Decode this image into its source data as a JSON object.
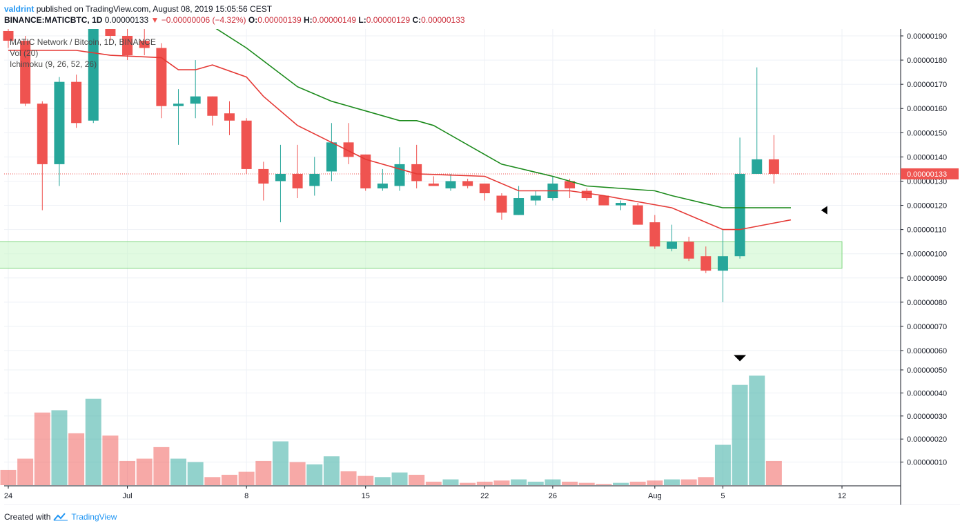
{
  "header": {
    "author": "valdrint",
    "published_text": "published on TradingView.com, August 08, 2019 15:05:56 CEST",
    "symbol": "BINANCE:MATICBTC, 1D",
    "last": "0.00000133",
    "change_arrow": "▼",
    "change": "−0.00000006 (−4.32%)",
    "o_label": "O:",
    "o_value": "0.00000139",
    "h_label": "H:",
    "h_value": "0.00000149",
    "l_label": "L:",
    "l_value": "0.00000129",
    "c_label": "C:",
    "c_value": "0.00000133"
  },
  "legend": {
    "title": "MATIC Network / Bitcoin, 1D, BINANCE",
    "volume": "Vol (20)",
    "ichimoku": "Ichimoku (9, 26, 52, 26)"
  },
  "footer": {
    "created_with": "Created with",
    "brand": "TradingView",
    "logo_icon": "tradingview-logo-icon"
  },
  "colors": {
    "up": "#26a69a",
    "down": "#ef5350",
    "vol_up": "#26a69a",
    "vol_down": "#ef5350",
    "conversion_line": "#e53935",
    "base_line": "#1b8a1b",
    "zone_fill": "#c8f5c8",
    "zone_stroke": "#7ed67e",
    "price_tag": "#ef5350",
    "grid": "#eef1f6"
  },
  "chart_data": {
    "type": "candlestick",
    "title": "MATIC Network / Bitcoin, 1D, BINANCE",
    "price_axis_range": [
      6.2e-07,
      1.9e-06
    ],
    "price_ticks": [
      "0.00000060",
      "0.00000070",
      "0.00000080",
      "0.00000090",
      "0.00000100",
      "0.00000110",
      "0.00000120",
      "0.00000130",
      "0.00000140",
      "0.00000150",
      "0.00000160",
      "0.00000170",
      "0.00000180",
      "0.00000190"
    ],
    "volume_ticks": [
      "0.00000010",
      "0.00000020",
      "0.00000030",
      "0.00000040",
      "0.00000050"
    ],
    "volume_axis_range": [
      0,
      5e-07
    ],
    "x_ticks": [
      {
        "label": "24",
        "day": "2019-06-24"
      },
      {
        "label": "Jul",
        "day": "2019-07-01"
      },
      {
        "label": "8",
        "day": "2019-07-08"
      },
      {
        "label": "15",
        "day": "2019-07-15"
      },
      {
        "label": "22",
        "day": "2019-07-22"
      },
      {
        "label": "26",
        "day": "2019-07-26"
      },
      {
        "label": "Aug",
        "day": "2019-08-01"
      },
      {
        "label": "5",
        "day": "2019-08-05"
      },
      {
        "label": "12",
        "day": "2019-08-12"
      }
    ],
    "x_range": [
      "2019-06-24",
      "2019-08-15"
    ],
    "candles": [
      {
        "date": "2019-06-24",
        "o": 1.92,
        "h": 1.95,
        "l": 1.85,
        "c": 1.88,
        "v": 0.066
      },
      {
        "date": "2019-06-25",
        "o": 1.88,
        "h": 1.9,
        "l": 1.61,
        "c": 1.62,
        "v": 0.115
      },
      {
        "date": "2019-06-26",
        "o": 1.62,
        "h": 1.63,
        "l": 1.18,
        "c": 1.37,
        "v": 0.315
      },
      {
        "date": "2019-06-27",
        "o": 1.37,
        "h": 1.73,
        "l": 1.28,
        "c": 1.71,
        "v": 0.325
      },
      {
        "date": "2019-06-28",
        "o": 1.71,
        "h": 1.74,
        "l": 1.52,
        "c": 1.54,
        "v": 0.225
      },
      {
        "date": "2019-06-29",
        "o": 1.55,
        "h": 1.98,
        "l": 1.54,
        "c": 1.96,
        "v": 0.375
      },
      {
        "date": "2019-06-30",
        "o": 1.96,
        "h": 2.03,
        "l": 1.88,
        "c": 1.9,
        "v": 0.215
      },
      {
        "date": "2019-07-01",
        "o": 1.9,
        "h": 1.93,
        "l": 1.8,
        "c": 1.82,
        "v": 0.105
      },
      {
        "date": "2019-07-02",
        "o": 1.88,
        "h": 1.95,
        "l": 1.82,
        "c": 1.85,
        "v": 0.115
      },
      {
        "date": "2019-07-03",
        "o": 1.85,
        "h": 1.87,
        "l": 1.56,
        "c": 1.61,
        "v": 0.165
      },
      {
        "date": "2019-07-04",
        "o": 1.61,
        "h": 1.68,
        "l": 1.45,
        "c": 1.62,
        "v": 0.115
      },
      {
        "date": "2019-07-05",
        "o": 1.62,
        "h": 1.8,
        "l": 1.56,
        "c": 1.65,
        "v": 0.1
      },
      {
        "date": "2019-07-06",
        "o": 1.65,
        "h": 1.65,
        "l": 1.53,
        "c": 1.57,
        "v": 0.035
      },
      {
        "date": "2019-07-07",
        "o": 1.58,
        "h": 1.63,
        "l": 1.49,
        "c": 1.55,
        "v": 0.045
      },
      {
        "date": "2019-07-08",
        "o": 1.55,
        "h": 1.56,
        "l": 1.33,
        "c": 1.35,
        "v": 0.058
      },
      {
        "date": "2019-07-09",
        "o": 1.35,
        "h": 1.38,
        "l": 1.22,
        "c": 1.29,
        "v": 0.105
      },
      {
        "date": "2019-07-10",
        "o": 1.3,
        "h": 1.45,
        "l": 1.13,
        "c": 1.33,
        "v": 0.19
      },
      {
        "date": "2019-07-11",
        "o": 1.33,
        "h": 1.45,
        "l": 1.23,
        "c": 1.27,
        "v": 0.1
      },
      {
        "date": "2019-07-12",
        "o": 1.28,
        "h": 1.4,
        "l": 1.24,
        "c": 1.33,
        "v": 0.09
      },
      {
        "date": "2019-07-13",
        "o": 1.34,
        "h": 1.54,
        "l": 1.3,
        "c": 1.46,
        "v": 0.125
      },
      {
        "date": "2019-07-14",
        "o": 1.46,
        "h": 1.54,
        "l": 1.37,
        "c": 1.4,
        "v": 0.06
      },
      {
        "date": "2019-07-15",
        "o": 1.41,
        "h": 1.41,
        "l": 1.26,
        "c": 1.27,
        "v": 0.04
      },
      {
        "date": "2019-07-16",
        "o": 1.27,
        "h": 1.35,
        "l": 1.26,
        "c": 1.29,
        "v": 0.035
      },
      {
        "date": "2019-07-17",
        "o": 1.28,
        "h": 1.44,
        "l": 1.26,
        "c": 1.37,
        "v": 0.055
      },
      {
        "date": "2019-07-18",
        "o": 1.37,
        "h": 1.45,
        "l": 1.27,
        "c": 1.3,
        "v": 0.045
      },
      {
        "date": "2019-07-19",
        "o": 1.29,
        "h": 1.32,
        "l": 1.28,
        "c": 1.28,
        "v": 0.015
      },
      {
        "date": "2019-07-20",
        "o": 1.27,
        "h": 1.33,
        "l": 1.26,
        "c": 1.3,
        "v": 0.025
      },
      {
        "date": "2019-07-21",
        "o": 1.3,
        "h": 1.31,
        "l": 1.27,
        "c": 1.28,
        "v": 0.01
      },
      {
        "date": "2019-07-22",
        "o": 1.29,
        "h": 1.29,
        "l": 1.22,
        "c": 1.25,
        "v": 0.015
      },
      {
        "date": "2019-07-23",
        "o": 1.24,
        "h": 1.25,
        "l": 1.14,
        "c": 1.17,
        "v": 0.02
      },
      {
        "date": "2019-07-24",
        "o": 1.16,
        "h": 1.28,
        "l": 1.16,
        "c": 1.23,
        "v": 0.025
      },
      {
        "date": "2019-07-25",
        "o": 1.22,
        "h": 1.26,
        "l": 1.2,
        "c": 1.24,
        "v": 0.015
      },
      {
        "date": "2019-07-26",
        "o": 1.23,
        "h": 1.32,
        "l": 1.22,
        "c": 1.29,
        "v": 0.025
      },
      {
        "date": "2019-07-27",
        "o": 1.3,
        "h": 1.31,
        "l": 1.23,
        "c": 1.27,
        "v": 0.015
      },
      {
        "date": "2019-07-28",
        "o": 1.26,
        "h": 1.27,
        "l": 1.22,
        "c": 1.23,
        "v": 0.01
      },
      {
        "date": "2019-07-29",
        "o": 1.24,
        "h": 1.24,
        "l": 1.2,
        "c": 1.2,
        "v": 0.005
      },
      {
        "date": "2019-07-30",
        "o": 1.2,
        "h": 1.22,
        "l": 1.18,
        "c": 1.21,
        "v": 0.01
      },
      {
        "date": "2019-07-31",
        "o": 1.2,
        "h": 1.21,
        "l": 1.12,
        "c": 1.12,
        "v": 0.015
      },
      {
        "date": "2019-08-01",
        "o": 1.13,
        "h": 1.16,
        "l": 1.02,
        "c": 1.03,
        "v": 0.02
      },
      {
        "date": "2019-08-02",
        "o": 1.02,
        "h": 1.12,
        "l": 1.01,
        "c": 1.05,
        "v": 0.025
      },
      {
        "date": "2019-08-03",
        "o": 1.05,
        "h": 1.07,
        "l": 0.97,
        "c": 0.98,
        "v": 0.025
      },
      {
        "date": "2019-08-04",
        "o": 0.99,
        "h": 1.03,
        "l": 0.92,
        "c": 0.93,
        "v": 0.035
      },
      {
        "date": "2019-08-05",
        "o": 0.93,
        "h": 1.1,
        "l": 0.8,
        "c": 0.99,
        "v": 0.175
      },
      {
        "date": "2019-08-06",
        "o": 0.99,
        "h": 1.48,
        "l": 0.98,
        "c": 1.33,
        "v": 0.435
      },
      {
        "date": "2019-08-07",
        "o": 1.33,
        "h": 1.77,
        "l": 1.33,
        "c": 1.39,
        "v": 0.475
      },
      {
        "date": "2019-08-08",
        "o": 1.39,
        "h": 1.49,
        "l": 1.29,
        "c": 1.33,
        "v": 0.105
      }
    ],
    "candle_value_note": "o/h/l/c in units of 0.000001 BTC; v in units of 0.000001",
    "ichimoku_conversion_line": [
      {
        "date": "2019-06-24",
        "y": 1.84
      },
      {
        "date": "2019-06-28",
        "y": 1.84
      },
      {
        "date": "2019-06-30",
        "y": 1.82
      },
      {
        "date": "2019-07-03",
        "y": 1.81
      },
      {
        "date": "2019-07-04",
        "y": 1.76
      },
      {
        "date": "2019-07-05",
        "y": 1.76
      },
      {
        "date": "2019-07-06",
        "y": 1.78
      },
      {
        "date": "2019-07-08",
        "y": 1.73
      },
      {
        "date": "2019-07-09",
        "y": 1.65
      },
      {
        "date": "2019-07-11",
        "y": 1.53
      },
      {
        "date": "2019-07-13",
        "y": 1.46
      },
      {
        "date": "2019-07-15",
        "y": 1.39
      },
      {
        "date": "2019-07-18",
        "y": 1.33
      },
      {
        "date": "2019-07-22",
        "y": 1.32
      },
      {
        "date": "2019-07-24",
        "y": 1.26
      },
      {
        "date": "2019-07-27",
        "y": 1.26
      },
      {
        "date": "2019-07-29",
        "y": 1.24
      },
      {
        "date": "2019-08-02",
        "y": 1.19
      },
      {
        "date": "2019-08-05",
        "y": 1.1
      },
      {
        "date": "2019-08-06",
        "y": 1.1
      },
      {
        "date": "2019-08-09",
        "y": 1.14
      }
    ],
    "ichimoku_base_line": [
      {
        "date": "2019-06-29",
        "y": 2.08
      },
      {
        "date": "2019-07-06",
        "y": 1.94
      },
      {
        "date": "2019-07-08",
        "y": 1.85
      },
      {
        "date": "2019-07-11",
        "y": 1.69
      },
      {
        "date": "2019-07-13",
        "y": 1.63
      },
      {
        "date": "2019-07-15",
        "y": 1.59
      },
      {
        "date": "2019-07-17",
        "y": 1.55
      },
      {
        "date": "2019-07-18",
        "y": 1.55
      },
      {
        "date": "2019-07-19",
        "y": 1.53
      },
      {
        "date": "2019-07-22",
        "y": 1.41
      },
      {
        "date": "2019-07-23",
        "y": 1.37
      },
      {
        "date": "2019-07-26",
        "y": 1.32
      },
      {
        "date": "2019-07-28",
        "y": 1.28
      },
      {
        "date": "2019-08-01",
        "y": 1.26
      },
      {
        "date": "2019-08-02",
        "y": 1.24
      },
      {
        "date": "2019-08-05",
        "y": 1.19
      },
      {
        "date": "2019-08-06",
        "y": 1.19
      },
      {
        "date": "2019-08-09",
        "y": 1.19
      }
    ],
    "support_zone": {
      "from": "2019-06-23",
      "to": "2019-08-12",
      "y_low": 0.94,
      "y_high": 1.05
    },
    "current_price": {
      "y": 1.33,
      "label": "0.00000133"
    },
    "markers": [
      {
        "type": "triangle-left",
        "date": "2019-08-10",
        "y": 1.18
      },
      {
        "type": "triangle-down",
        "date": "2019-08-06",
        "y": 0.57
      }
    ],
    "grid": true
  }
}
